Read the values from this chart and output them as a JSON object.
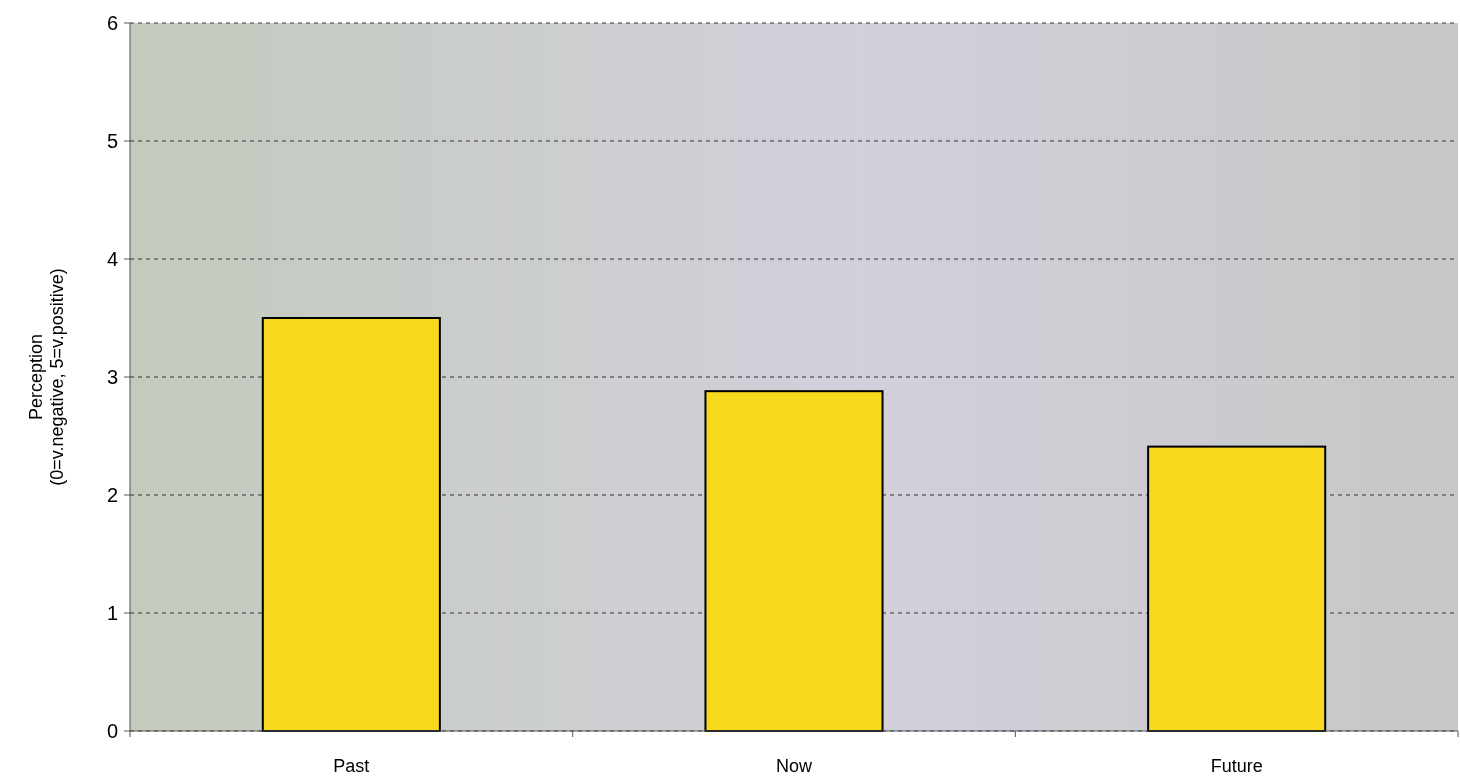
{
  "chart_data": {
    "type": "bar",
    "ylabel": "Perception\n(0=v.negative, 5=v.positive)",
    "categories": [
      "Past",
      "Now",
      "Future"
    ],
    "values": [
      3.5,
      2.88,
      2.41
    ],
    "color": "#f7da1e",
    "ylim": [
      0,
      6
    ],
    "yticks": [
      0,
      1,
      2,
      3,
      4,
      5,
      6
    ],
    "grid": "y"
  }
}
